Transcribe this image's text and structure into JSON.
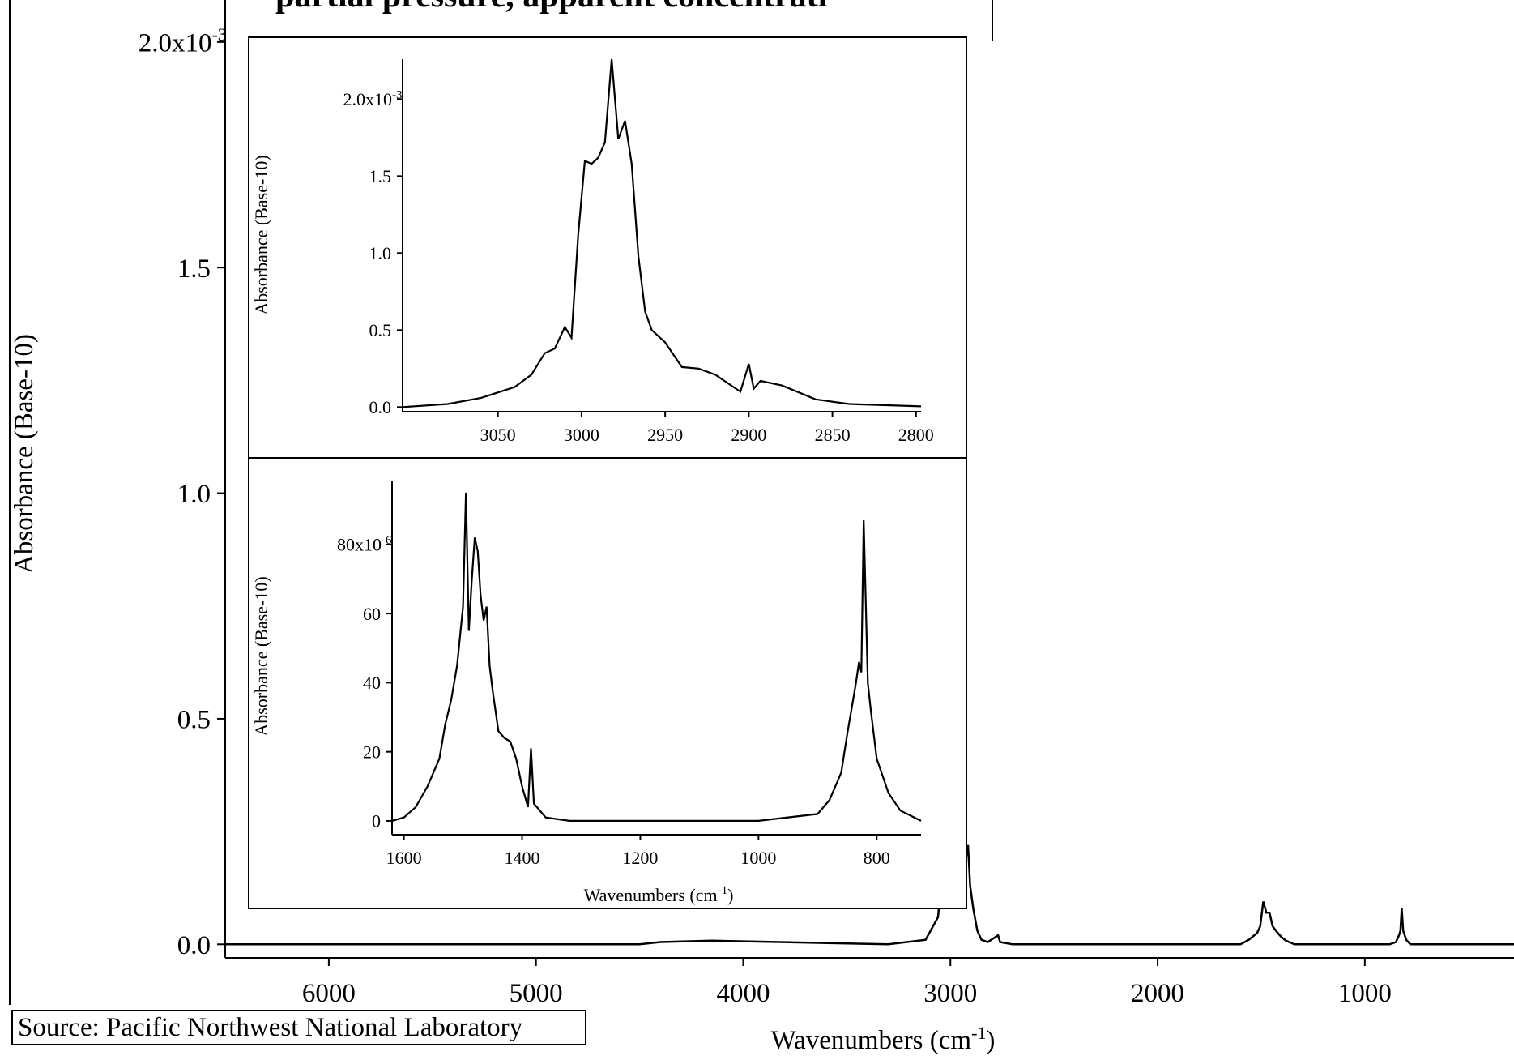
{
  "title_fragment": "partial pressure, apparent concentrati",
  "source": "Source: Pacific Northwest National Laboratory",
  "chart_data": [
    {
      "id": "main",
      "type": "line",
      "xlabel": "Wavenumbers (cm-1)",
      "ylabel": "Absorbance (Base-10)",
      "x_reversed": true,
      "xlim": [
        6500,
        280
      ],
      "ylim": [
        -3e-05,
        0.00205
      ],
      "x_ticks": [
        {
          "v": 6000,
          "label": "6000"
        },
        {
          "v": 5000,
          "label": "5000"
        },
        {
          "v": 4000,
          "label": "4000"
        },
        {
          "v": 3000,
          "label": "3000"
        },
        {
          "v": 2000,
          "label": "2000"
        },
        {
          "v": 1000,
          "label": "1000"
        }
      ],
      "y_ticks": [
        {
          "v": 0,
          "label": "0.0"
        },
        {
          "v": 0.0005,
          "label": "0.5"
        },
        {
          "v": 0.001,
          "label": "1.0"
        },
        {
          "v": 0.0015,
          "label": "1.5"
        },
        {
          "v": 0.002,
          "label": "2.0x10",
          "sup": "-3"
        }
      ],
      "series": [
        {
          "values_note": "",
          "x": [
            6500,
            4500,
            4400,
            4150,
            3300,
            3120,
            3060,
            3040,
            3030,
            3020,
            3012,
            3005,
            2998,
            2990,
            2982,
            2975,
            2965,
            2955,
            2945,
            2935,
            2925,
            2915,
            2905,
            2890,
            2870,
            2850,
            2820,
            2770,
            2760,
            2700,
            1900,
            1600,
            1560,
            1520,
            1505,
            1490,
            1475,
            1460,
            1445,
            1420,
            1400,
            1380,
            1340,
            1000,
            880,
            850,
            835,
            828,
            822,
            815,
            800,
            780,
            280
          ],
          "y": [
            0,
            0,
            5e-06,
            8e-06,
            0,
            1e-05,
            6e-05,
            0.00015,
            0.00035,
            0.0008,
            0.0016,
            0.00172,
            0.0018,
            0.00197,
            0.00182,
            0.00165,
            0.0009,
            0.00045,
            0.00028,
            0.00016,
            0.00019,
            0.00022,
            0.00013,
            8e-05,
            3e-05,
            1e-05,
            5e-06,
            2e-05,
            5e-06,
            0,
            0,
            0,
            1e-05,
            2.5e-05,
            4e-05,
            9.5e-05,
            7e-05,
            7e-05,
            4e-05,
            2.5e-05,
            1.5e-05,
            8e-06,
            0,
            0,
            0,
            5e-06,
            2e-05,
            3e-05,
            8e-05,
            3e-05,
            1e-05,
            0,
            0
          ]
        }
      ]
    },
    {
      "id": "inset-top",
      "type": "line",
      "ylabel": "Absorbance (Base-10)",
      "x_reversed": true,
      "xlim": [
        3107,
        2797
      ],
      "ylim": [
        -3e-05,
        0.00226
      ],
      "x_ticks": [
        {
          "v": 3050,
          "label": "3050"
        },
        {
          "v": 3000,
          "label": "3000"
        },
        {
          "v": 2950,
          "label": "2950"
        },
        {
          "v": 2900,
          "label": "2900"
        },
        {
          "v": 2850,
          "label": "2850"
        },
        {
          "v": 2800,
          "label": "2800"
        }
      ],
      "y_ticks": [
        {
          "v": 0,
          "label": "0.0"
        },
        {
          "v": 0.0005,
          "label": "0.5"
        },
        {
          "v": 0.001,
          "label": "1.0"
        },
        {
          "v": 0.0015,
          "label": "1.5"
        },
        {
          "v": 0.002,
          "label": "2.0x10",
          "sup": "-3"
        }
      ],
      "series": [
        {
          "x": [
            3107,
            3080,
            3060,
            3040,
            3030,
            3022,
            3016,
            3010,
            3006,
            3002,
            2998,
            2994,
            2990,
            2986,
            2982,
            2978,
            2974,
            2970,
            2966,
            2962,
            2958,
            2950,
            2940,
            2930,
            2920,
            2905,
            2900,
            2897,
            2893,
            2880,
            2860,
            2840,
            2797
          ],
          "y": [
            0,
            2e-05,
            6e-05,
            0.00013,
            0.00021,
            0.00035,
            0.00038,
            0.00052,
            0.00045,
            0.00112,
            0.0016,
            0.00158,
            0.00162,
            0.00172,
            0.00226,
            0.00174,
            0.00186,
            0.00158,
            0.00098,
            0.00062,
            0.0005,
            0.00042,
            0.00026,
            0.00025,
            0.00021,
            0.0001,
            0.00028,
            0.00012,
            0.00017,
            0.00014,
            5e-05,
            2e-05,
            5e-06
          ]
        }
      ]
    },
    {
      "id": "inset-bottom",
      "type": "line",
      "xlabel": "Wavenumbers (cm-1)",
      "ylabel": "Absorbance (Base-10)",
      "x_reversed": true,
      "xlim": [
        1620,
        725
      ],
      "ylim": [
        -4e-06,
        9.85e-05
      ],
      "x_ticks": [
        {
          "v": 1600,
          "label": "1600"
        },
        {
          "v": 1400,
          "label": "1400"
        },
        {
          "v": 1200,
          "label": "1200"
        },
        {
          "v": 1000,
          "label": "1000"
        },
        {
          "v": 800,
          "label": "800"
        }
      ],
      "y_ticks": [
        {
          "v": 0,
          "label": "0"
        },
        {
          "v": 2e-05,
          "label": "20"
        },
        {
          "v": 4e-05,
          "label": "40"
        },
        {
          "v": 6e-05,
          "label": "60"
        },
        {
          "v": 8e-05,
          "label": "80x10",
          "sup": "-6"
        }
      ],
      "series": [
        {
          "x": [
            1620,
            1600,
            1580,
            1560,
            1540,
            1530,
            1520,
            1510,
            1500,
            1495,
            1490,
            1485,
            1480,
            1475,
            1470,
            1465,
            1460,
            1455,
            1450,
            1440,
            1430,
            1420,
            1410,
            1400,
            1390,
            1385,
            1380,
            1360,
            1320,
            1200,
            1000,
            900,
            880,
            860,
            850,
            840,
            835,
            830,
            826,
            822,
            815,
            810,
            800,
            780,
            760,
            725
          ],
          "y": [
            0,
            1e-06,
            4e-06,
            1e-05,
            1.8e-05,
            2.8e-05,
            3.5e-05,
            4.5e-05,
            6.2e-05,
            9.5e-05,
            5.5e-05,
            7e-05,
            8.2e-05,
            7.8e-05,
            6.5e-05,
            5.8e-05,
            6.2e-05,
            4.5e-05,
            3.8e-05,
            2.6e-05,
            2.4e-05,
            2.3e-05,
            1.8e-05,
            1e-05,
            4e-06,
            2.1e-05,
            5e-06,
            1e-06,
            0,
            0,
            0,
            2e-06,
            6e-06,
            1.4e-05,
            2.5e-05,
            3.5e-05,
            4e-05,
            4.6e-05,
            4.3e-05,
            8.7e-05,
            4e-05,
            3.2e-05,
            1.8e-05,
            8e-06,
            3e-06,
            0
          ]
        }
      ]
    }
  ]
}
